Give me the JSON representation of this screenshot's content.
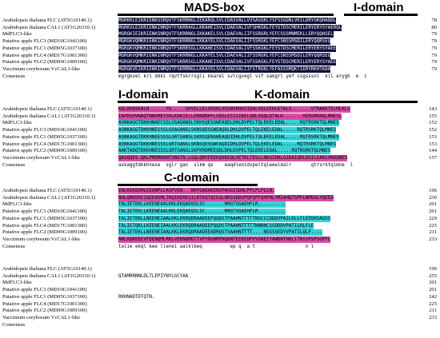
{
  "colors": {
    "identical": "#0d0d3a",
    "high": "#d94ca8",
    "similar": "#36d2d8",
    "none": "transparent"
  },
  "blocks": [
    {
      "domains": [
        {
          "label": "MADS-box"
        },
        {
          "label": "I-domain"
        }
      ],
      "rows": [
        {
          "name": "Arabidopsis thaliana FLC (AT5G10140.1)",
          "end": "78",
          "segs": [
            [
              "MGRKKLEIKRIENKSSRQVTFSKRRNGLIEKARQLSVLCDASVALLVVSASGKLYSFSSGDNLVKILDRYGKQHADDL",
              "identical"
            ]
          ]
        },
        {
          "name": "Arabidopsis thaliana CAL1 (AT1G26310.1)",
          "end": "80",
          "segs": [
            [
              "MGRKVLEIKRIENKINRQVTFSKRRAGLLKKAHEISVLCDAEVALIVFSHKGKLFEYSTDSCMERILERYERYSYAERQL",
              "identical"
            ]
          ]
        },
        {
          "name": "MdFLC3-like",
          "end": "79",
          "segs": [
            [
              "MGRGKIEIKRIENKSNRQVTFSKRRNGLIKKAKELSVLCDAEVALIIFSSRGRLYEFCSSSMNMEKLLERYQQHSEL",
              "identical"
            ]
          ]
        },
        {
          "name": "Putative apple FLC3 (MD10G1041100)",
          "end": "79",
          "segs": [
            [
              "MGRGKVQMKRIENKINRQVTFSKRRNGLIKKAYELSVLCDAEVALIIFSSRGKLYEFCSNSSMSDILERYQQRSEQ",
              "identical"
            ]
          ]
        },
        {
          "name": "Putative apple FLC1 (MD05G1037100)",
          "end": "79",
          "segs": [
            [
              "MGRGKVQMKRIENKINRQVTFSKRRSGLLKKAHEISVLCDAEVALIVFSSKGKLFEYSTDSCMERILERYERYSYAEE",
              "identical"
            ]
          ]
        },
        {
          "name": "Putative apple FLC4 (MD17G1001300)",
          "end": "79",
          "segs": [
            [
              "MGRGKVQMKRIENKINRQVTFSKRRNGLLKKAYELSVLCDAEVALIIFSSRGKLYEFCSNSSMSDILERYQQRSEQ",
              "identical"
            ]
          ]
        },
        {
          "name": "Putative apple FLC2 (MD09G1009100)",
          "end": "79",
          "segs": [
            [
              "MGRGKVQMKRIENKINRQVTFSKRRSGLLKKAHEISVLCDAEVALIVFSSKGKLFEYSTDSCMERILERYERYSYAEE",
              "identical"
            ]
          ]
        },
        {
          "name": "Vaccinium corybosum VcCAL1-like",
          "end": "79",
          "segs": [
            [
              "MGRGKVEIKRIENKINRQVTFSKRRNGLLKKAYELSVLCDAEVALIIFSTRGKLYEFASSSMQKTIERYRKHTKDA",
              "identical"
            ]
          ]
        },
        {
          "name": "Consensus",
          "end": "",
          "cons": true,
          "segs": [
            [
              "mgrgkvel kri ddki rqvtfskrrsgli kkarel svlcgvegl vif sakgrl yef csgsssnl  kll erygh  e  i",
              "none"
            ]
          ]
        }
      ]
    },
    {
      "domains": [
        {
          "label": "I-domain"
        },
        {
          "label": "K-domain"
        }
      ],
      "rows": [
        {
          "name": "Arabidopsis thaliana FLC (AT5G10140.1)",
          "end": "143",
          "segs": [
            [
              "KALDHQSKALN......YG.....SHYELLELVDSKLVGSNVKNVSIDALVQLEEHLETALS.......VTRAKKTELMLKLV",
              "high"
            ]
          ]
        },
        {
          "name": "Arabidopsis thaliana CAL1 (AT1G26310.1)",
          "end": "155",
          "segs": [
            [
              "IAPDSHVNAQTNWSMEYSRLKAKIELLERNQRHYLGEDLESISIKELQNLEQQLDTALK.......HIRSRKNQLMNESL",
              "high"
            ]
          ]
        },
        {
          "name": "MdFLC3-like",
          "end": "152",
          "segs": [
            [
              "ASNKAGGTDKKHNAECSSLGSAGANSLSKHSQESGWEAQDLDHLDVPELTQLEKELEDAL.....RQTRSRKTQLMNES",
              "similar"
            ]
          ]
        },
        {
          "name": "Putative apple FLC3 (MD10G1041100)",
          "end": "152",
          "segs": [
            [
              "ASNKAGGTDKKHNESSSLGSAGANSLSKNSQESGWEAQDLDHLDVPELTQLEKELEDAL.....RQTRSRKTQLMNES",
              "similar"
            ]
          ]
        },
        {
          "name": "Putative apple FLC1 (MD05G1037100)",
          "end": "153",
          "segs": [
            [
              "ASNKAGGTDKKHNEESSSLGRTGANSLSKNSQENGWEAQDIDHLDVPELTQLEKELEDAL.....RQTRSRKTQLMNES",
              "similar"
            ]
          ]
        },
        {
          "name": "Putative apple FLC4 (MD17G1001300)",
          "end": "153",
          "segs": [
            [
              "ASNKAGGTDKKHNESSSLGRTGANSLSKNSQESGWEAQDIDHLDVPELTQLEKELEDAL.....RQTRSRKTQLMNES",
              "similar"
            ]
          ]
        },
        {
          "name": "Putative apple FLC2 (MD09G1009100)",
          "end": "144",
          "segs": [
            [
              "AAKTADQTDKKHNESSSLGRTGANSLSKFKRDMEEQDLDHLDVPELTQLEKELEDAL.....RQTRSRKTQLMNES",
              "similar"
            ]
          ]
        },
        {
          "name": "Vaccinium corybosum VcCAL1-like",
          "end": "157",
          "segs": [
            [
              "QASQQES.QKLPMDMKHNTVNGTN.LSQLQRYFEEKQVKEQLVETKLTESLLNKGIDHLGIDAIQRLDSILEAKLVNVQNES",
              "high"
            ]
          ]
        },
        {
          "name": "Consensus",
          "end": "",
          "cons": true,
          "segs": [
            [
              "askaggtdkkhnese  sglr gan  slkm qs    eaqdlenidvpeltqleeeldalr       qtrsrktqlmne  l",
              "none"
            ]
          ]
        }
      ]
    },
    {
      "domains": [
        {
          "label": "C-domain"
        }
      ],
      "rows": [
        {
          "name": "Arabidopsis thaliana FLC (AT5G10140.1)",
          "end": "196",
          "segs": [
            [
              "ENLKEKEKMLEEQNPLLASPVEN...NHYGAEAEENSPAGGISDNLPPLPLPLLN.",
              "high"
            ]
          ]
        },
        {
          "name": "Arabidopsis thaliana CAL1 (AT1G26310.1)",
          "end": "230",
          "segs": [
            [
              "NHLQRKEKEIQEENSMLTKQIKERESILRTKQTQCEQLNRSVDDVPQPQPFQHPHLYMIAHQTSPFLNMGGLYQEED",
              "high"
            ]
          ]
        },
        {
          "name": "MdFLC3-like",
          "end": "201",
          "segs": [
            [
              "TALIETEKLLKEENEAALKKLEKQAEQGLSC.......RRGTSGAEHFLR..........",
              "similar"
            ]
          ]
        },
        {
          "name": "Putative apple FLC3 (MD10G1041100)",
          "end": "201",
          "segs": [
            [
              "TALIETEKLLKEENEAALKKLEKQAEQGLSC.......RRGTSGAEHFLR..........",
              "similar"
            ]
          ]
        },
        {
          "name": "Putative apple FLC1 (MD05G1037100)",
          "end": "229",
          "segs": [
            [
              "TALIETEKLLNEENEIAALKKLEKRQDRAADEEPQQDSTPAAHNTTTTTNSCCCDDDVPAILKLLFLEDSKSAGSS",
              "similar"
            ]
          ]
        },
        {
          "name": "Putative apple FLC4 (MD17G1001300)",
          "end": "225",
          "segs": [
            [
              "TALIETQKLLKEENEIAALKKLEKRQDRAADEEPQQDSTPAAHNTTTTTNNNNCSSDDDVPATILRLFLE",
              "similar"
            ]
          ]
        },
        {
          "name": "Putative apple FLC2 (MD09G1009100)",
          "end": "211",
          "segs": [
            [
              "TALIETEKLLNEENEIAALKKLEKRQDRAADEEADRQSTSAAHNTTTT....NSSSSEDYVPATILQLF....",
              "similar"
            ]
          ]
        },
        {
          "name": "Vaccinium corybosum VcCAL1-like",
          "end": "233",
          "segs": [
            [
              "NNLKQKEEEVFEENQMLRKLVEKNQMGTTVPYDGHRPNQDNTEEEEDPVVGNEIYAWDNTNHCITNSSPSPSGPFL",
              "high"
            ]
          ]
        },
        {
          "name": "Consensus",
          "end": "",
          "cons": true,
          "segs": [
            [
              "talie ekql kee llenei aalklkeq          ep q  a t                  n l",
              "none"
            ]
          ]
        }
      ]
    },
    {
      "domains": [],
      "rows": [
        {
          "name": "Arabidopsis thaliana FLC (AT5G10140.1)",
          "end": "196",
          "segs": [
            [
              "",
              "none"
            ]
          ]
        },
        {
          "name": "Arabidopsis thaliana CAL1 (AT1G26310.1)",
          "end": "255",
          "segs": [
            [
              "QTAMRRNNLDLTLEPIYNYLGCYAA",
              "none"
            ]
          ]
        },
        {
          "name": "MdFLC3-like",
          "end": "201",
          "segs": [
            [
              "",
              "none"
            ]
          ]
        },
        {
          "name": "Putative apple FLC3 (MD10G1041100)",
          "end": "201",
          "segs": [
            [
              "",
              "none"
            ]
          ]
        },
        {
          "name": "Putative apple FLC1 (MD05G1037100)",
          "end": "242",
          "segs": [
            [
              "RKHNADTDTQTN.",
              "none"
            ]
          ]
        },
        {
          "name": "Putative apple FLC4 (MD17G1001300)",
          "end": "225",
          "segs": [
            [
              "",
              "none"
            ]
          ]
        },
        {
          "name": "Putative apple FLC2 (MD09G1009100)",
          "end": "211",
          "segs": [
            [
              "",
              "none"
            ]
          ]
        },
        {
          "name": "Vaccinium corybosum VcCAL1-like",
          "end": "233",
          "segs": [
            [
              "",
              "none"
            ]
          ]
        },
        {
          "name": "Consensus",
          "end": "",
          "cons": true,
          "segs": [
            [
              "",
              "none"
            ]
          ]
        }
      ]
    }
  ]
}
